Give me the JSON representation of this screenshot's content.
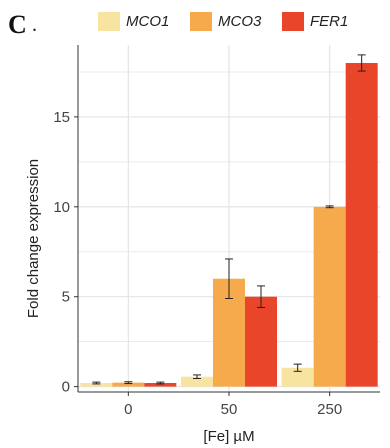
{
  "panel": {
    "label": "C",
    "dot": "."
  },
  "colors": {
    "MCO1": "#f7e4a0",
    "MCO3": "#f7aa4c",
    "FER1": "#e8452a",
    "grid": "#e4e4e4",
    "axis": "#333333"
  },
  "chart_data": {
    "type": "bar",
    "title": "",
    "xlabel": "[Fe] µM",
    "ylabel": "Fold change expression",
    "categories": [
      "0",
      "50",
      "250"
    ],
    "ylim": [
      -0.3,
      19
    ],
    "yticks": [
      0,
      5,
      10,
      15
    ],
    "grid": true,
    "legend_position": "top",
    "series": [
      {
        "name": "MCO1",
        "values": [
          0.2,
          0.55,
          1.05
        ],
        "errors": [
          0.05,
          0.1,
          0.2
        ]
      },
      {
        "name": "MCO3",
        "values": [
          0.22,
          6.0,
          10.0
        ],
        "errors": [
          0.05,
          1.1,
          0.05
        ]
      },
      {
        "name": "FER1",
        "values": [
          0.2,
          5.0,
          18.0
        ],
        "errors": [
          0.05,
          0.6,
          0.45
        ]
      }
    ]
  }
}
